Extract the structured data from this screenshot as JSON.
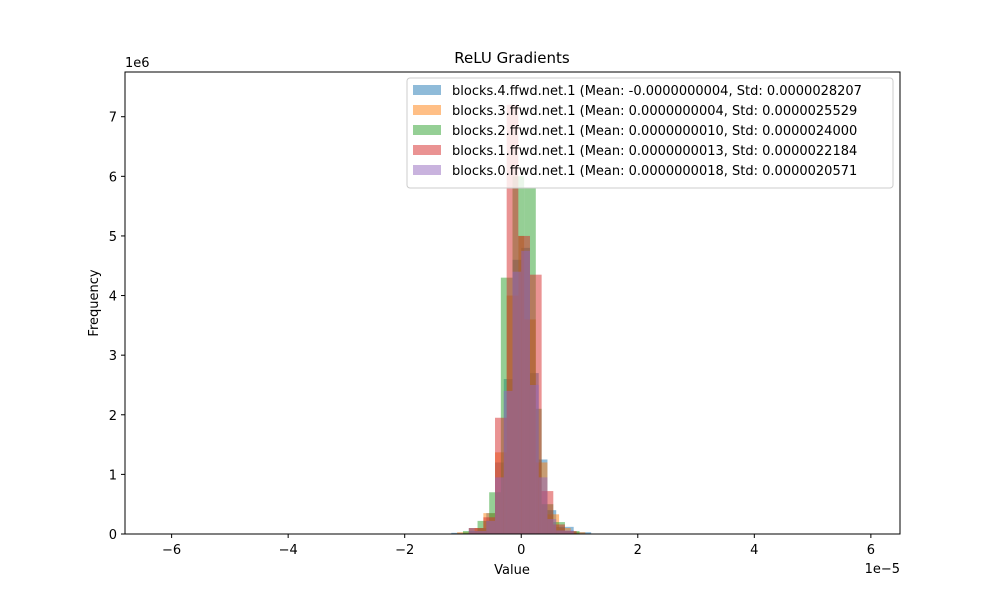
{
  "chart_data": {
    "type": "bar",
    "title": "ReLU Gradients",
    "xlabel": "Value",
    "ylabel": "Frequency",
    "x_scale_label": "1e−5",
    "y_scale_label": "1e6",
    "xlim": [
      -6.8,
      6.5
    ],
    "ylim": [
      0,
      7.75
    ],
    "x_ticks": [
      -6,
      -4,
      -2,
      0,
      2,
      4,
      6
    ],
    "x_tick_labels": [
      "−6",
      "−4",
      "−2",
      "0",
      "2",
      "4",
      "6"
    ],
    "y_ticks": [
      0,
      1,
      2,
      3,
      4,
      5,
      6,
      7
    ],
    "y_tick_labels": [
      "0",
      "1",
      "2",
      "3",
      "4",
      "5",
      "6",
      "7"
    ],
    "grid": false,
    "legend_position": "top-right",
    "x_units": "1e-5",
    "y_units": "1e6",
    "series": [
      {
        "name": "blocks.4.ffwd.net.1 (Mean: -0.0000000004, Std: 0.0000028207",
        "color": "#1f77b4",
        "bins": [
          [
            -1.2,
            -0.9,
            0.02
          ],
          [
            -0.9,
            -0.6,
            0.1
          ],
          [
            -0.6,
            -0.45,
            0.35
          ],
          [
            -0.45,
            -0.3,
            1.2
          ],
          [
            -0.3,
            -0.15,
            2.6
          ],
          [
            -0.15,
            0.0,
            4.6
          ],
          [
            0.0,
            0.15,
            4.8
          ],
          [
            0.15,
            0.3,
            2.7
          ],
          [
            0.3,
            0.45,
            1.25
          ],
          [
            0.45,
            0.6,
            0.4
          ],
          [
            0.6,
            0.9,
            0.12
          ],
          [
            0.9,
            1.2,
            0.03
          ]
        ]
      },
      {
        "name": "blocks.3.ffwd.net.1 (Mean: 0.0000000004, Std: 0.0000025529",
        "color": "#ff7f0e",
        "bins": [
          [
            -1.1,
            -0.8,
            0.03
          ],
          [
            -0.8,
            -0.65,
            0.1
          ],
          [
            -0.65,
            -0.45,
            0.35
          ],
          [
            -0.45,
            -0.25,
            1.37
          ],
          [
            -0.25,
            -0.05,
            4.0
          ],
          [
            -0.05,
            0.05,
            5.0
          ],
          [
            0.05,
            0.25,
            3.6
          ],
          [
            0.25,
            0.45,
            1.2
          ],
          [
            0.45,
            0.65,
            0.33
          ],
          [
            0.65,
            0.85,
            0.1
          ],
          [
            0.85,
            1.1,
            0.03
          ]
        ]
      },
      {
        "name": "blocks.2.ffwd.net.1 (Mean: 0.0000000010, Std: 0.0000024000",
        "color": "#2ca02c",
        "bins": [
          [
            -1.0,
            -0.75,
            0.05
          ],
          [
            -0.75,
            -0.55,
            0.22
          ],
          [
            -0.55,
            -0.35,
            0.7
          ],
          [
            -0.35,
            -0.15,
            4.3
          ],
          [
            -0.15,
            0.05,
            6.0
          ],
          [
            0.05,
            0.25,
            5.8
          ],
          [
            0.25,
            0.35,
            2.1
          ],
          [
            0.35,
            0.55,
            0.5
          ],
          [
            0.55,
            0.75,
            0.2
          ],
          [
            0.75,
            1.0,
            0.05
          ]
        ]
      },
      {
        "name": "blocks.1.ffwd.net.1 (Mean: 0.0000000013, Std: 0.0000022184",
        "color": "#d62728",
        "bins": [
          [
            -0.9,
            -0.65,
            0.1
          ],
          [
            -0.65,
            -0.45,
            0.28
          ],
          [
            -0.45,
            -0.25,
            1.95
          ],
          [
            -0.25,
            -0.05,
            7.2
          ],
          [
            -0.05,
            0.15,
            5.0
          ],
          [
            0.15,
            0.35,
            4.35
          ],
          [
            0.35,
            0.55,
            0.72
          ],
          [
            0.55,
            0.75,
            0.16
          ],
          [
            0.75,
            0.95,
            0.05
          ]
        ]
      },
      {
        "name": "blocks.0.ffwd.net.1 (Mean: 0.0000000018, Std: 0.0000020571",
        "color": "#9467bd",
        "bins": [
          [
            -0.9,
            -0.6,
            0.05
          ],
          [
            -0.6,
            -0.45,
            0.22
          ],
          [
            -0.45,
            -0.3,
            0.95
          ],
          [
            -0.3,
            -0.15,
            2.4
          ],
          [
            -0.15,
            0.0,
            4.4
          ],
          [
            0.0,
            0.15,
            4.75
          ],
          [
            0.15,
            0.3,
            2.5
          ],
          [
            0.3,
            0.45,
            0.95
          ],
          [
            0.45,
            0.6,
            0.25
          ],
          [
            0.6,
            0.9,
            0.06
          ]
        ]
      }
    ]
  }
}
